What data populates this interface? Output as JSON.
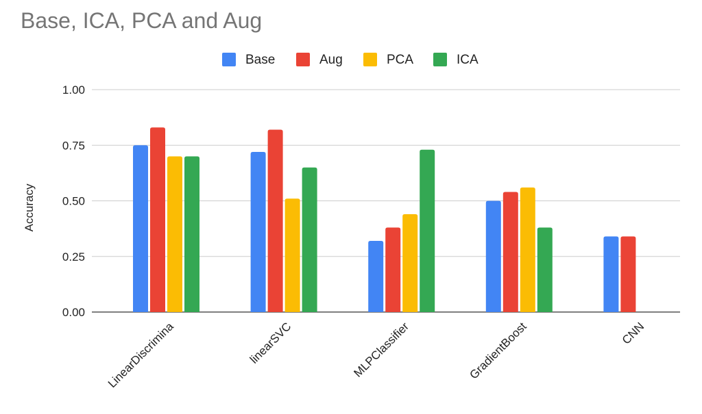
{
  "chart_data": {
    "type": "bar",
    "title": "Base, ICA, PCA and Aug",
    "xlabel": "",
    "ylabel": "Accuracy",
    "ylim": [
      0,
      1
    ],
    "yticks": [
      "0.00",
      "0.25",
      "0.50",
      "0.75",
      "1.00"
    ],
    "categories": [
      "LinearDiscrimina",
      "linearSVC",
      "MLPClassifier",
      "GradientBoost",
      "CNN"
    ],
    "series": [
      {
        "name": "Base",
        "color": "#4285f4",
        "values": [
          0.75,
          0.72,
          0.32,
          0.5,
          0.34
        ]
      },
      {
        "name": "Aug",
        "color": "#ea4335",
        "values": [
          0.83,
          0.82,
          0.38,
          0.54,
          0.34
        ]
      },
      {
        "name": "PCA",
        "color": "#fbbc04",
        "values": [
          0.7,
          0.51,
          0.44,
          0.56,
          0
        ]
      },
      {
        "name": "ICA",
        "color": "#34a853",
        "values": [
          0.7,
          0.65,
          0.73,
          0.38,
          0
        ]
      }
    ],
    "legend_position": "top-center",
    "grid": true
  }
}
